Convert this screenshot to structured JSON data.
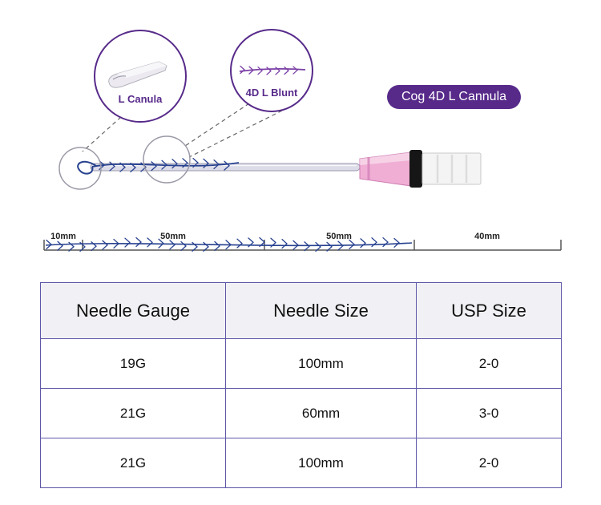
{
  "badge": {
    "label": "Cog 4D L Cannula"
  },
  "callouts": [
    {
      "label": "L Canula"
    },
    {
      "label": "4D L Blunt"
    }
  ],
  "ruler": {
    "segments": [
      {
        "label": "10mm"
      },
      {
        "label": "50mm"
      },
      {
        "label": "50mm"
      },
      {
        "label": "40mm"
      }
    ]
  },
  "table": {
    "headers": [
      "Needle Gauge",
      "Needle Size",
      "USP Size"
    ],
    "rows": [
      [
        "19G",
        "100mm",
        "2-0"
      ],
      [
        "21G",
        "60mm",
        "3-0"
      ],
      [
        "21G",
        "100mm",
        "2-0"
      ]
    ]
  },
  "colors": {
    "accent_purple": "#572a8a",
    "thread_navy": "#27418f",
    "callout_thread_purple": "#7b3fa5",
    "hub_pink": "#f0aed4",
    "table_border": "#5e58a8",
    "header_bg": "#f1f1f5"
  }
}
